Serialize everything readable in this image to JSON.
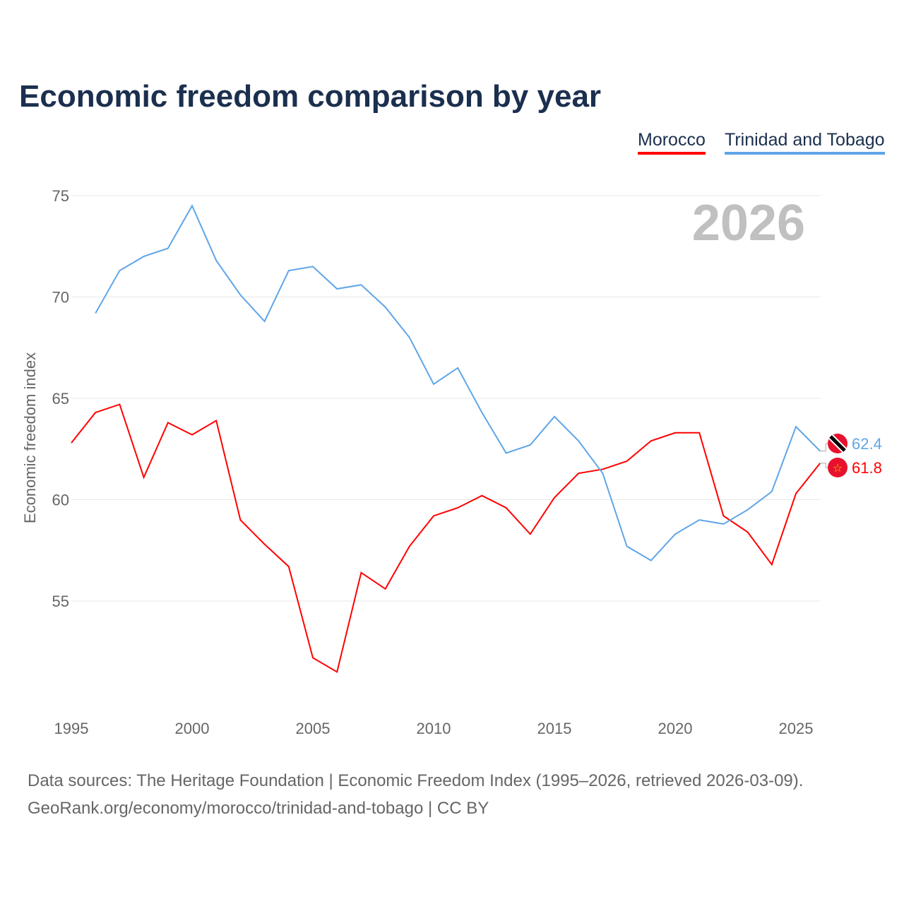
{
  "title": "Economic freedom comparison by year",
  "footer": {
    "line1": "Data sources: The Heritage Foundation | Economic Freedom Index (1995–2026, retrieved 2026-03-09).",
    "line2": "GeoRank.org/economy/morocco/trinidad-and-tobago | CC BY"
  },
  "chart_data": {
    "type": "line",
    "title": "Economic freedom comparison by year",
    "ylabel": "Economic freedom index",
    "xlabel": "",
    "year_label": "2026",
    "xlim": [
      1995,
      2026
    ],
    "ylim": [
      50.5,
      75.5
    ],
    "xticks": [
      1995,
      2000,
      2005,
      2010,
      2015,
      2020,
      2025
    ],
    "yticks": [
      55,
      60,
      65,
      70,
      75
    ],
    "grid": true,
    "legend_position": "top-right",
    "series": [
      {
        "name": "Morocco",
        "color": "#ff0000",
        "end_label": "61.8",
        "x": [
          1995,
          1996,
          1997,
          1998,
          1999,
          2000,
          2001,
          2002,
          2003,
          2004,
          2005,
          2006,
          2007,
          2008,
          2009,
          2010,
          2011,
          2012,
          2013,
          2014,
          2015,
          2016,
          2017,
          2018,
          2019,
          2020,
          2021,
          2022,
          2023,
          2024,
          2025,
          2026
        ],
        "values": [
          62.8,
          64.3,
          64.7,
          61.1,
          63.8,
          63.2,
          63.9,
          59.0,
          57.8,
          56.7,
          52.2,
          51.5,
          56.4,
          55.6,
          57.7,
          59.2,
          59.6,
          60.2,
          59.6,
          58.3,
          60.1,
          61.3,
          61.5,
          61.9,
          62.9,
          63.3,
          63.3,
          59.2,
          58.4,
          56.8,
          60.3,
          61.8
        ]
      },
      {
        "name": "Trinidad and Tobago",
        "color": "#5fa5e8",
        "end_label": "62.4",
        "x": [
          1996,
          1997,
          1998,
          1999,
          2000,
          2001,
          2002,
          2003,
          2004,
          2005,
          2006,
          2007,
          2008,
          2009,
          2010,
          2011,
          2012,
          2013,
          2014,
          2015,
          2016,
          2017,
          2018,
          2019,
          2020,
          2021,
          2022,
          2023,
          2024,
          2025,
          2026
        ],
        "values": [
          69.2,
          71.3,
          72.0,
          72.4,
          74.5,
          71.8,
          70.1,
          68.8,
          71.3,
          71.5,
          70.4,
          70.6,
          69.5,
          68.0,
          65.7,
          66.5,
          64.3,
          62.3,
          62.7,
          64.1,
          62.9,
          61.3,
          57.7,
          57.0,
          58.3,
          59.0,
          58.8,
          59.5,
          60.4,
          63.6,
          62.4
        ]
      }
    ]
  }
}
